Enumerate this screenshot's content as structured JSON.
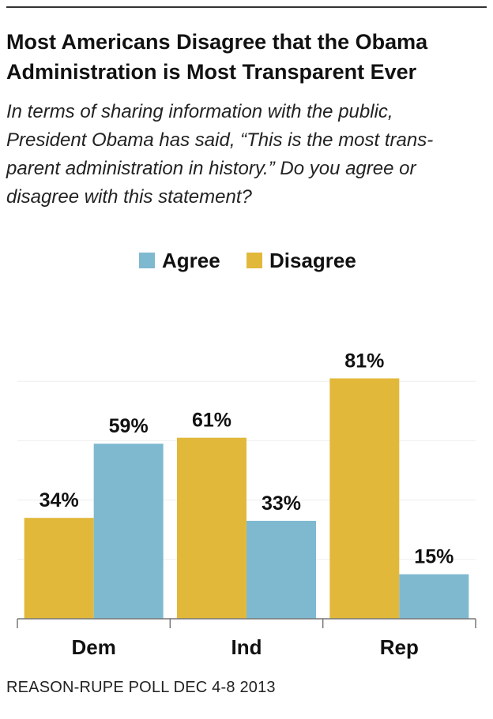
{
  "header": {
    "title_line1": "Most Americans Disagree that the Obama",
    "title_line2": "Administration is Most Transparent Ever",
    "subtitle_line1": "In terms of sharing information with the public,",
    "subtitle_line2": "President Obama has said, “This is the most trans-",
    "subtitle_line3": "parent administration in history.” Do you agree or",
    "subtitle_line4": "disagree with this statement?"
  },
  "legend": {
    "agree": "Agree",
    "disagree": "Disagree"
  },
  "colors": {
    "agree": "#7fb9d0",
    "disagree": "#e2b83b",
    "gridline": "#eeeeee",
    "axis": "#777777"
  },
  "chart_data": {
    "type": "bar",
    "categories": [
      "Dem",
      "Ind",
      "Rep"
    ],
    "series": [
      {
        "name": "Disagree",
        "values": [
          34,
          61,
          81
        ],
        "labels": [
          "34%",
          "61%",
          "81%"
        ]
      },
      {
        "name": "Agree",
        "values": [
          59,
          33,
          15
        ],
        "labels": [
          "59%",
          "33%",
          "15%"
        ]
      }
    ],
    "ylim": [
      0,
      100
    ],
    "grid": true,
    "legend_position": "top"
  },
  "footer": {
    "source": "REASON-RUPE POLL DEC 4-8 2013"
  }
}
